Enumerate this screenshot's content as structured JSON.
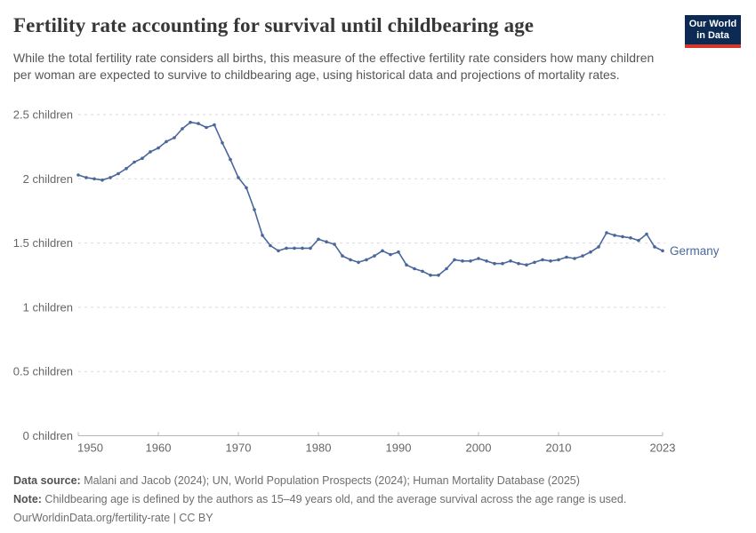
{
  "header": {
    "title": "Fertility rate accounting for survival until childbearing age",
    "subtitle": "While the total fertility rate considers all births, this measure of the effective fertility rate considers how many children per woman are expected to survive to childbearing age, using historical data and projections of mortality rates."
  },
  "logo": {
    "line1": "Our World",
    "line2": "in Data"
  },
  "chart_data": {
    "type": "line",
    "title": "Fertility rate accounting for survival until childbearing age",
    "unit": "children",
    "xlabel": "",
    "ylabel": "",
    "xlim": [
      1950,
      2023
    ],
    "ylim": [
      0,
      2.5
    ],
    "grid": "horizontal-dashed",
    "legend_position": "end-of-line-label",
    "x_ticks": [
      1950,
      1960,
      1970,
      1980,
      1990,
      2000,
      2010,
      2023
    ],
    "y_ticks": [
      0,
      0.5,
      1,
      1.5,
      2,
      2.5
    ],
    "y_tick_label_suffix": " children",
    "series": [
      {
        "name": "Germany",
        "color": "#4a679c",
        "x": [
          1950,
          1951,
          1952,
          1953,
          1954,
          1955,
          1956,
          1957,
          1958,
          1959,
          1960,
          1961,
          1962,
          1963,
          1964,
          1965,
          1966,
          1967,
          1968,
          1969,
          1970,
          1971,
          1972,
          1973,
          1974,
          1975,
          1976,
          1977,
          1978,
          1979,
          1980,
          1981,
          1982,
          1983,
          1984,
          1985,
          1986,
          1987,
          1988,
          1989,
          1990,
          1991,
          1992,
          1993,
          1994,
          1995,
          1996,
          1997,
          1998,
          1999,
          2000,
          2001,
          2002,
          2003,
          2004,
          2005,
          2006,
          2007,
          2008,
          2009,
          2010,
          2011,
          2012,
          2013,
          2014,
          2015,
          2016,
          2017,
          2018,
          2019,
          2020,
          2021,
          2022,
          2023
        ],
        "values": [
          2.03,
          2.01,
          2.0,
          1.99,
          2.01,
          2.04,
          2.08,
          2.13,
          2.16,
          2.21,
          2.24,
          2.29,
          2.32,
          2.39,
          2.44,
          2.43,
          2.4,
          2.42,
          2.28,
          2.15,
          2.01,
          1.93,
          1.76,
          1.56,
          1.48,
          1.44,
          1.46,
          1.46,
          1.46,
          1.46,
          1.53,
          1.51,
          1.49,
          1.4,
          1.37,
          1.35,
          1.37,
          1.4,
          1.44,
          1.41,
          1.43,
          1.33,
          1.3,
          1.28,
          1.25,
          1.25,
          1.3,
          1.37,
          1.36,
          1.36,
          1.38,
          1.36,
          1.34,
          1.34,
          1.36,
          1.34,
          1.33,
          1.35,
          1.37,
          1.36,
          1.37,
          1.39,
          1.38,
          1.4,
          1.43,
          1.47,
          1.58,
          1.56,
          1.55,
          1.54,
          1.52,
          1.57,
          1.47,
          1.44
        ]
      }
    ]
  },
  "footer": {
    "data_source_label": "Data source:",
    "data_source_text": " Malani and Jacob (2024); UN, World Population Prospects (2024); Human Mortality Database (2025)",
    "note_label": "Note:",
    "note_text": " Childbearing age is defined by the authors as 15–49 years old, and the average survival across the age range is used.",
    "license_text": "OurWorldinData.org/fertility-rate | CC BY"
  },
  "colors": {
    "line": "#4a679c",
    "logo_navy": "#0c2a54",
    "logo_red": "#d4382a"
  }
}
